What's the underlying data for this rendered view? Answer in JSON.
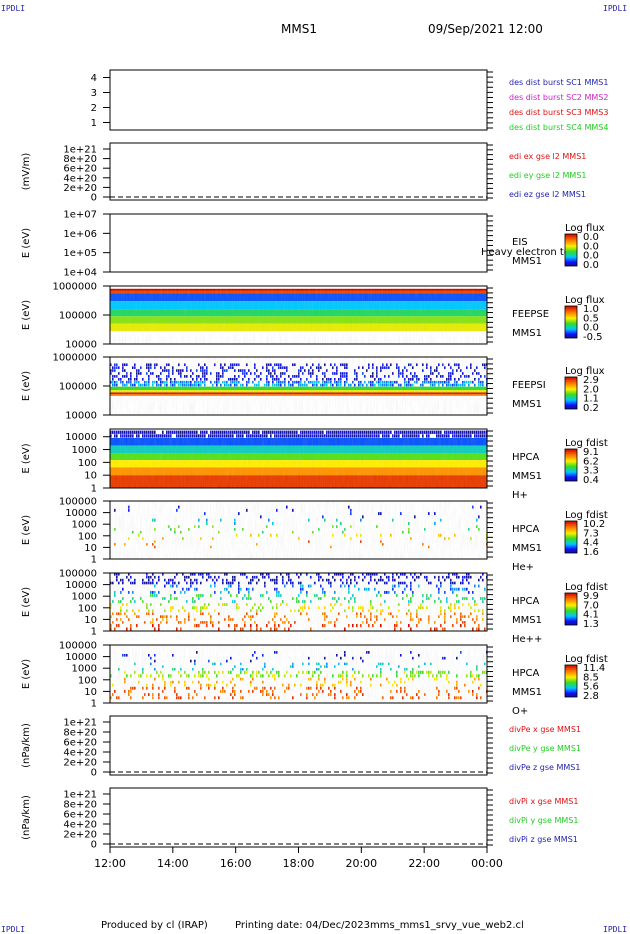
{
  "header": {
    "corner_tl": "IPDLI",
    "corner_tr": "IPDLI",
    "corner_bl": "IPDLI",
    "corner_br": "IPDLI",
    "spacecraft": "MMS1",
    "datetime": "09/Sep/2021 12:00"
  },
  "footer": {
    "produced_by": "Produced by cl (IRAP)",
    "printing_date": "Printing date: 04/Dec/2023",
    "script_name": "mms_mms1_srvy_vue_web2.cl"
  },
  "colors": {
    "blue": "#1f1fb0",
    "magenta": "#cc22cc",
    "red": "#dd1111",
    "green": "#22cc22"
  },
  "chart_data": {
    "type": "heatmap",
    "x_axis": {
      "ticks": [
        "12:00",
        "14:00",
        "16:00",
        "18:00",
        "20:00",
        "22:00",
        "00:00"
      ],
      "range": [
        "12:00",
        "00:00"
      ]
    },
    "panels": [
      {
        "id": "burst",
        "kind": "line",
        "ylabel": "",
        "yticks": [
          "4",
          "3",
          "2",
          "1"
        ],
        "ylim": [
          0.5,
          4.5
        ],
        "dashed_zero": false,
        "legend": [
          {
            "text": "des dist burst SC1 MMS1",
            "color": "#1f1fb0"
          },
          {
            "text": "des dist burst SC2 MMS2",
            "color": "#cc22cc"
          },
          {
            "text": "des dist burst SC3 MMS3",
            "color": "#dd1111"
          },
          {
            "text": "des dist burst SC4 MMS4",
            "color": "#22cc22"
          }
        ],
        "series": []
      },
      {
        "id": "edi",
        "kind": "line",
        "ylabel": "(mV/m)",
        "yticks": [
          "1e+21",
          "8e+20",
          "6e+20",
          "4e+20",
          "2e+20",
          "0"
        ],
        "ylim": [
          0,
          1e+21
        ],
        "dashed_zero": true,
        "legend": [
          {
            "text": "edi ex gse l2 MMS1",
            "color": "#dd1111"
          },
          {
            "text": "edi ey gse l2 MMS1",
            "color": "#22cc22"
          },
          {
            "text": "edi ez gse l2 MMS1",
            "color": "#1f1fb0"
          }
        ],
        "series": []
      },
      {
        "id": "eis",
        "kind": "spectrogram",
        "ylabel": "E (eV)",
        "yticks": [
          "1e+07",
          "1e+06",
          "1e+05",
          "1e+04"
        ],
        "ylim": [
          10000.0,
          10000000.0
        ],
        "log": true,
        "right_labels": [
          "EIS",
          "MMS1"
        ],
        "overlay_label": "Heavy electron to",
        "colorbar": {
          "label": "Log flux",
          "ticks": [
            "0.0",
            "0.0",
            "0.0",
            "0.0"
          ]
        },
        "bands": []
      },
      {
        "id": "feepse",
        "kind": "spectrogram",
        "ylabel": "E (eV)",
        "yticks": [
          "1000000",
          "100000",
          "10000"
        ],
        "ylim": [
          10000.0,
          1000000.0
        ],
        "log": true,
        "right_labels": [
          "FEEPSE",
          "MMS1"
        ],
        "colorbar": {
          "label": "Log flux",
          "ticks": [
            "1.0",
            "0.5",
            "0.0",
            "-0.5"
          ]
        },
        "bands": [
          {
            "from": 700000,
            "to": 800000,
            "level": 1.0,
            "density": 1.0
          },
          {
            "from": 550000,
            "to": 700000,
            "level": 0.88,
            "density": 1.0
          },
          {
            "from": 300000,
            "to": 550000,
            "level": 0.18,
            "density": 1.0
          },
          {
            "from": 160000,
            "to": 300000,
            "level": 0.28,
            "density": 1.0
          },
          {
            "from": 90000,
            "to": 160000,
            "level": 0.4,
            "density": 1.0
          },
          {
            "from": 50000,
            "to": 90000,
            "level": 0.52,
            "density": 1.0
          },
          {
            "from": 28000,
            "to": 50000,
            "level": 0.6,
            "density": 1.0
          }
        ]
      },
      {
        "id": "feepsi",
        "kind": "spectrogram",
        "ylabel": "E (eV)",
        "yticks": [
          "1000000",
          "100000",
          "10000"
        ],
        "ylim": [
          10000.0,
          1000000.0
        ],
        "log": true,
        "right_labels": [
          "FEEPSI",
          "MMS1"
        ],
        "colorbar": {
          "label": "Log flux",
          "ticks": [
            "2.9",
            "2.0",
            "1.1",
            "0.2"
          ]
        },
        "bands": [
          {
            "from": 150000,
            "to": 600000,
            "level": 0.07,
            "density": 0.35
          },
          {
            "from": 95000,
            "to": 150000,
            "level": 0.22,
            "density": 0.7
          },
          {
            "from": 72000,
            "to": 95000,
            "level": 0.45,
            "density": 1.0
          },
          {
            "from": 60000,
            "to": 72000,
            "level": 0.6,
            "density": 1.0
          },
          {
            "from": 52000,
            "to": 60000,
            "level": 0.96,
            "density": 1.0
          },
          {
            "from": 46000,
            "to": 52000,
            "level": 0.82,
            "density": 1.0
          }
        ]
      },
      {
        "id": "hpca_h",
        "kind": "spectrogram",
        "ylabel": "E (eV)",
        "yticks": [
          "10000",
          "1000",
          "100",
          "10",
          "1"
        ],
        "ylim": [
          1,
          40000
        ],
        "log": true,
        "right_labels": [
          "HPCA",
          "MMS1",
          "H+"
        ],
        "colorbar": {
          "label": "Log fdist",
          "ticks": [
            "9.1",
            "6.2",
            "3.3",
            "0.4"
          ]
        },
        "bands": [
          {
            "from": 8000,
            "to": 30000,
            "level": 0.03,
            "density": 0.92
          },
          {
            "from": 2000,
            "to": 8000,
            "level": 0.18,
            "density": 1.0
          },
          {
            "from": 500,
            "to": 2000,
            "level": 0.33,
            "density": 1.0
          },
          {
            "from": 150,
            "to": 500,
            "level": 0.48,
            "density": 1.0
          },
          {
            "from": 40,
            "to": 150,
            "level": 0.62,
            "density": 1.0
          },
          {
            "from": 10,
            "to": 40,
            "level": 0.76,
            "density": 1.0
          },
          {
            "from": 1,
            "to": 10,
            "level": 0.9,
            "density": 1.0
          }
        ]
      },
      {
        "id": "hpca_he",
        "kind": "spectrogram",
        "ylabel": "E (eV)",
        "yticks": [
          "100000",
          "10000",
          "1000",
          "100",
          "10",
          "1"
        ],
        "ylim": [
          1,
          100000
        ],
        "log": true,
        "right_labels": [
          "HPCA",
          "MMS1",
          "He+"
        ],
        "colorbar": {
          "label": "Log fdist",
          "ticks": [
            "10.2",
            "7.3",
            "4.4",
            "1.6"
          ]
        },
        "bands": [
          {
            "from": 3000,
            "to": 40000,
            "level": 0.08,
            "density": 0.04
          },
          {
            "from": 800,
            "to": 3000,
            "level": 0.3,
            "density": 0.05
          },
          {
            "from": 150,
            "to": 800,
            "level": 0.45,
            "density": 0.06
          },
          {
            "from": 40,
            "to": 150,
            "level": 0.62,
            "density": 0.08
          },
          {
            "from": 8,
            "to": 40,
            "level": 0.82,
            "density": 0.03
          }
        ]
      },
      {
        "id": "hpca_hepp",
        "kind": "spectrogram",
        "ylabel": "E (eV)",
        "yticks": [
          "100000",
          "10000",
          "1000",
          "100",
          "10",
          "1"
        ],
        "ylim": [
          1,
          100000
        ],
        "log": true,
        "right_labels": [
          "HPCA",
          "MMS1",
          "He++"
        ],
        "colorbar": {
          "label": "Log fdist",
          "ticks": [
            "9.9",
            "7.0",
            "4.1",
            "1.3"
          ]
        },
        "bands": [
          {
            "from": 10000,
            "to": 100000,
            "level": 0.04,
            "density": 0.35
          },
          {
            "from": 1500,
            "to": 10000,
            "level": 0.22,
            "density": 0.18
          },
          {
            "from": 250,
            "to": 1500,
            "level": 0.38,
            "density": 0.2
          },
          {
            "from": 40,
            "to": 250,
            "level": 0.6,
            "density": 0.2
          },
          {
            "from": 4,
            "to": 40,
            "level": 0.8,
            "density": 0.25
          },
          {
            "from": 1,
            "to": 4,
            "level": 0.9,
            "density": 0.2
          }
        ]
      },
      {
        "id": "hpca_o",
        "kind": "spectrogram",
        "ylabel": "E (eV)",
        "yticks": [
          "100000",
          "10000",
          "1000",
          "100",
          "10",
          "1"
        ],
        "ylim": [
          1,
          100000
        ],
        "log": true,
        "right_labels": [
          "HPCA",
          "MMS1",
          "O+"
        ],
        "colorbar": {
          "label": "Log fdist",
          "ticks": [
            "11.4",
            "8.5",
            "5.6",
            "2.8"
          ]
        },
        "bands": [
          {
            "from": 3000,
            "to": 30000,
            "level": 0.08,
            "density": 0.05
          },
          {
            "from": 600,
            "to": 3000,
            "level": 0.3,
            "density": 0.1
          },
          {
            "from": 150,
            "to": 600,
            "level": 0.52,
            "density": 0.3
          },
          {
            "from": 25,
            "to": 150,
            "level": 0.7,
            "density": 0.15
          },
          {
            "from": 2,
            "to": 25,
            "level": 0.85,
            "density": 0.2
          }
        ]
      },
      {
        "id": "divpe",
        "kind": "line",
        "ylabel": "(nPa/km)",
        "yticks": [
          "1e+21",
          "8e+20",
          "6e+20",
          "4e+20",
          "2e+20",
          "0"
        ],
        "ylim": [
          0,
          1e+21
        ],
        "dashed_zero": true,
        "legend": [
          {
            "text": "divPe x gse MMS1",
            "color": "#dd1111"
          },
          {
            "text": "divPe y gse MMS1",
            "color": "#22cc22"
          },
          {
            "text": "divPe z gse MMS1",
            "color": "#1f1fb0"
          }
        ],
        "series": []
      },
      {
        "id": "divpi",
        "kind": "line",
        "ylabel": "(nPa/km)",
        "yticks": [
          "1e+21",
          "8e+20",
          "6e+20",
          "4e+20",
          "2e+20",
          "0"
        ],
        "ylim": [
          0,
          1e+21
        ],
        "dashed_zero": true,
        "legend": [
          {
            "text": "divPi x gse MMS1",
            "color": "#dd1111"
          },
          {
            "text": "divPi y gse MMS1",
            "color": "#22cc22"
          },
          {
            "text": "divPi z gse MMS1",
            "color": "#1f1fb0"
          }
        ],
        "series": []
      }
    ]
  }
}
